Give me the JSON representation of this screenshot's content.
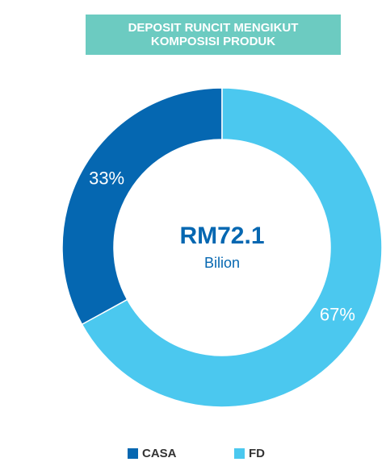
{
  "chart_data": {
    "type": "donut",
    "title": "DEPOSIT RUNCIT MENGIKUT KOMPOSISI PRODUK",
    "categories": [
      "CASA",
      "FD"
    ],
    "values": [
      33,
      67
    ],
    "value_labels": [
      "33%",
      "67%"
    ],
    "colors": [
      "#0567b1",
      "#4bc8ef"
    ],
    "center_label": "RM72.1",
    "center_sublabel": "Bilion",
    "legend": "bottom"
  }
}
